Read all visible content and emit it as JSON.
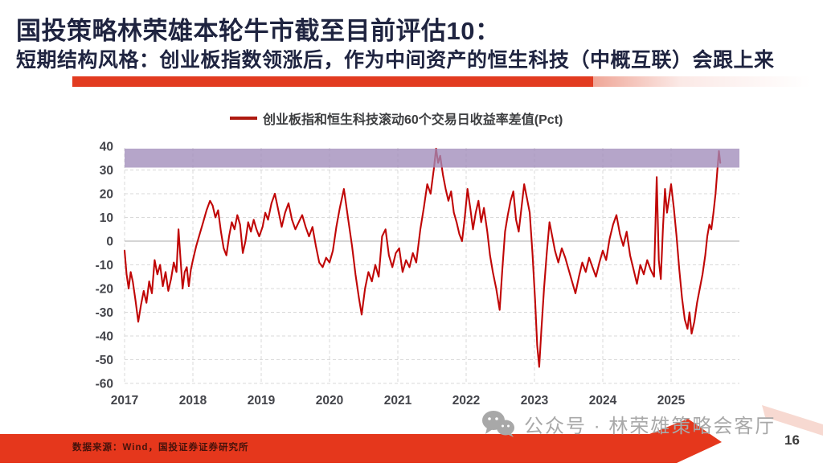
{
  "slide": {
    "title": "国投策略林荣雄本轮牛市截至目前评估10：",
    "subtitle": "短期结构风格：创业板指数领涨后，作为中间资产的恒生科技（中概互联）会跟上来",
    "source_note": "数据来源：Wind，国投证券证券研究所",
    "watermark": "公众号 · 林荣雄策略会客厅",
    "page_number": "16",
    "colors": {
      "title_navy": "#1f2440",
      "accent_red": "#e23b20",
      "banner_red": "#e5371c",
      "line_red": "#c00606",
      "band_purple": "#a08cba",
      "gridline_gray": "#d9d9d9",
      "tick_label_gray": "#43444a",
      "watermark_gray": "#a8a8a8"
    }
  },
  "chart_data": {
    "type": "line",
    "legend": "创业板指和恒生科技滚动60个交易日收益率差值(Pct)",
    "xlabel": "",
    "ylabel": "",
    "xlim": [
      2017,
      2026
    ],
    "ylim": [
      -60,
      40
    ],
    "x_ticks": [
      2017,
      2018,
      2019,
      2020,
      2021,
      2022,
      2023,
      2024,
      2025
    ],
    "y_ticks": [
      40,
      30,
      20,
      10,
      0,
      -10,
      -20,
      -30,
      -40,
      -50,
      -60
    ],
    "grid": "dashed",
    "legend_position": "top-center",
    "band": {
      "from": 31,
      "to": 39,
      "color": "#a08cba",
      "note": "highlight zone near top of range"
    },
    "series": [
      {
        "name": "创业板指和恒生科技滚动60个交易日收益率差值(Pct)",
        "color": "#c00606",
        "points": [
          [
            2017.0,
            -4
          ],
          [
            2017.03,
            -14
          ],
          [
            2017.06,
            -20
          ],
          [
            2017.09,
            -13
          ],
          [
            2017.12,
            -17
          ],
          [
            2017.16,
            -25
          ],
          [
            2017.2,
            -34
          ],
          [
            2017.24,
            -27
          ],
          [
            2017.28,
            -21
          ],
          [
            2017.32,
            -26
          ],
          [
            2017.36,
            -17
          ],
          [
            2017.4,
            -22
          ],
          [
            2017.44,
            -8
          ],
          [
            2017.48,
            -14
          ],
          [
            2017.52,
            -10
          ],
          [
            2017.56,
            -19
          ],
          [
            2017.6,
            -13
          ],
          [
            2017.64,
            -21
          ],
          [
            2017.68,
            -16
          ],
          [
            2017.72,
            -9
          ],
          [
            2017.76,
            -13
          ],
          [
            2017.79,
            5
          ],
          [
            2017.82,
            -8
          ],
          [
            2017.85,
            -20
          ],
          [
            2017.88,
            -13
          ],
          [
            2017.91,
            -11
          ],
          [
            2017.94,
            -19
          ],
          [
            2017.97,
            -12
          ],
          [
            2018.0,
            -8
          ],
          [
            2018.05,
            -2
          ],
          [
            2018.1,
            3
          ],
          [
            2018.15,
            8
          ],
          [
            2018.2,
            13
          ],
          [
            2018.25,
            17
          ],
          [
            2018.29,
            15
          ],
          [
            2018.33,
            10
          ],
          [
            2018.37,
            13
          ],
          [
            2018.41,
            4
          ],
          [
            2018.45,
            -3
          ],
          [
            2018.49,
            -6
          ],
          [
            2018.53,
            2
          ],
          [
            2018.57,
            8
          ],
          [
            2018.61,
            5
          ],
          [
            2018.65,
            11
          ],
          [
            2018.69,
            7
          ],
          [
            2018.73,
            -5
          ],
          [
            2018.77,
            0
          ],
          [
            2018.81,
            8
          ],
          [
            2018.85,
            4
          ],
          [
            2018.89,
            9
          ],
          [
            2018.93,
            5
          ],
          [
            2018.97,
            2
          ],
          [
            2019.02,
            6
          ],
          [
            2019.06,
            12
          ],
          [
            2019.1,
            9
          ],
          [
            2019.15,
            16
          ],
          [
            2019.2,
            20
          ],
          [
            2019.25,
            13
          ],
          [
            2019.3,
            6
          ],
          [
            2019.35,
            12
          ],
          [
            2019.4,
            16
          ],
          [
            2019.45,
            9
          ],
          [
            2019.5,
            5
          ],
          [
            2019.55,
            8
          ],
          [
            2019.6,
            11
          ],
          [
            2019.65,
            6
          ],
          [
            2019.7,
            2
          ],
          [
            2019.75,
            6
          ],
          [
            2019.8,
            -2
          ],
          [
            2019.85,
            -9
          ],
          [
            2019.9,
            -11
          ],
          [
            2019.95,
            -7
          ],
          [
            2020.0,
            -9
          ],
          [
            2020.05,
            -4
          ],
          [
            2020.1,
            6
          ],
          [
            2020.15,
            14
          ],
          [
            2020.21,
            22
          ],
          [
            2020.27,
            10
          ],
          [
            2020.33,
            -2
          ],
          [
            2020.38,
            -14
          ],
          [
            2020.43,
            -24
          ],
          [
            2020.47,
            -31
          ],
          [
            2020.52,
            -20
          ],
          [
            2020.57,
            -13
          ],
          [
            2020.62,
            -17
          ],
          [
            2020.67,
            -10
          ],
          [
            2020.72,
            -15
          ],
          [
            2020.77,
            2
          ],
          [
            2020.82,
            5
          ],
          [
            2020.87,
            -6
          ],
          [
            2020.92,
            -11
          ],
          [
            2020.97,
            -5
          ],
          [
            2021.02,
            -3
          ],
          [
            2021.07,
            -13
          ],
          [
            2021.12,
            -8
          ],
          [
            2021.17,
            -11
          ],
          [
            2021.22,
            -5
          ],
          [
            2021.27,
            -9
          ],
          [
            2021.33,
            5
          ],
          [
            2021.38,
            14
          ],
          [
            2021.43,
            24
          ],
          [
            2021.48,
            20
          ],
          [
            2021.53,
            31
          ],
          [
            2021.56,
            39
          ],
          [
            2021.59,
            33
          ],
          [
            2021.62,
            36
          ],
          [
            2021.66,
            28
          ],
          [
            2021.7,
            22
          ],
          [
            2021.74,
            17
          ],
          [
            2021.78,
            21
          ],
          [
            2021.82,
            12
          ],
          [
            2021.86,
            8
          ],
          [
            2021.9,
            3
          ],
          [
            2021.94,
            0
          ],
          [
            2021.98,
            10
          ],
          [
            2022.02,
            22
          ],
          [
            2022.06,
            14
          ],
          [
            2022.1,
            5
          ],
          [
            2022.14,
            12
          ],
          [
            2022.18,
            17
          ],
          [
            2022.22,
            8
          ],
          [
            2022.26,
            14
          ],
          [
            2022.31,
            4
          ],
          [
            2022.35,
            -6
          ],
          [
            2022.39,
            -13
          ],
          [
            2022.44,
            -20
          ],
          [
            2022.49,
            -29
          ],
          [
            2022.53,
            -12
          ],
          [
            2022.57,
            4
          ],
          [
            2022.61,
            11
          ],
          [
            2022.65,
            17
          ],
          [
            2022.69,
            21
          ],
          [
            2022.73,
            9
          ],
          [
            2022.77,
            4
          ],
          [
            2022.81,
            14
          ],
          [
            2022.85,
            24
          ],
          [
            2022.89,
            18
          ],
          [
            2022.93,
            12
          ],
          [
            2022.97,
            -5
          ],
          [
            2023.01,
            -25
          ],
          [
            2023.04,
            -44
          ],
          [
            2023.07,
            -53
          ],
          [
            2023.1,
            -38
          ],
          [
            2023.14,
            -20
          ],
          [
            2023.18,
            -5
          ],
          [
            2023.22,
            8
          ],
          [
            2023.26,
            2
          ],
          [
            2023.3,
            -4
          ],
          [
            2023.35,
            -9
          ],
          [
            2023.4,
            -3
          ],
          [
            2023.45,
            -7
          ],
          [
            2023.5,
            -12
          ],
          [
            2023.55,
            -17
          ],
          [
            2023.6,
            -22
          ],
          [
            2023.65,
            -15
          ],
          [
            2023.7,
            -9
          ],
          [
            2023.75,
            -13
          ],
          [
            2023.8,
            -7
          ],
          [
            2023.85,
            -11
          ],
          [
            2023.9,
            -15
          ],
          [
            2023.95,
            -9
          ],
          [
            2024.0,
            -4
          ],
          [
            2024.05,
            -8
          ],
          [
            2024.1,
            1
          ],
          [
            2024.15,
            7
          ],
          [
            2024.2,
            11
          ],
          [
            2024.25,
            3
          ],
          [
            2024.3,
            -2
          ],
          [
            2024.35,
            4
          ],
          [
            2024.4,
            -6
          ],
          [
            2024.45,
            -12
          ],
          [
            2024.5,
            -18
          ],
          [
            2024.55,
            -10
          ],
          [
            2024.6,
            -14
          ],
          [
            2024.65,
            -8
          ],
          [
            2024.7,
            -12
          ],
          [
            2024.75,
            -15
          ],
          [
            2024.79,
            27
          ],
          [
            2024.82,
            -8
          ],
          [
            2024.85,
            -16
          ],
          [
            2024.88,
            5
          ],
          [
            2024.91,
            22
          ],
          [
            2024.94,
            12
          ],
          [
            2024.97,
            18
          ],
          [
            2025.0,
            24
          ],
          [
            2025.04,
            14
          ],
          [
            2025.08,
            2
          ],
          [
            2025.12,
            -12
          ],
          [
            2025.16,
            -24
          ],
          [
            2025.2,
            -33
          ],
          [
            2025.24,
            -37
          ],
          [
            2025.27,
            -30
          ],
          [
            2025.3,
            -39
          ],
          [
            2025.34,
            -34
          ],
          [
            2025.38,
            -26
          ],
          [
            2025.42,
            -20
          ],
          [
            2025.46,
            -14
          ],
          [
            2025.5,
            -6
          ],
          [
            2025.53,
            2
          ],
          [
            2025.56,
            7
          ],
          [
            2025.59,
            5
          ],
          [
            2025.62,
            12
          ],
          [
            2025.65,
            20
          ],
          [
            2025.68,
            31
          ],
          [
            2025.7,
            38
          ],
          [
            2025.72,
            33
          ]
        ]
      }
    ]
  }
}
